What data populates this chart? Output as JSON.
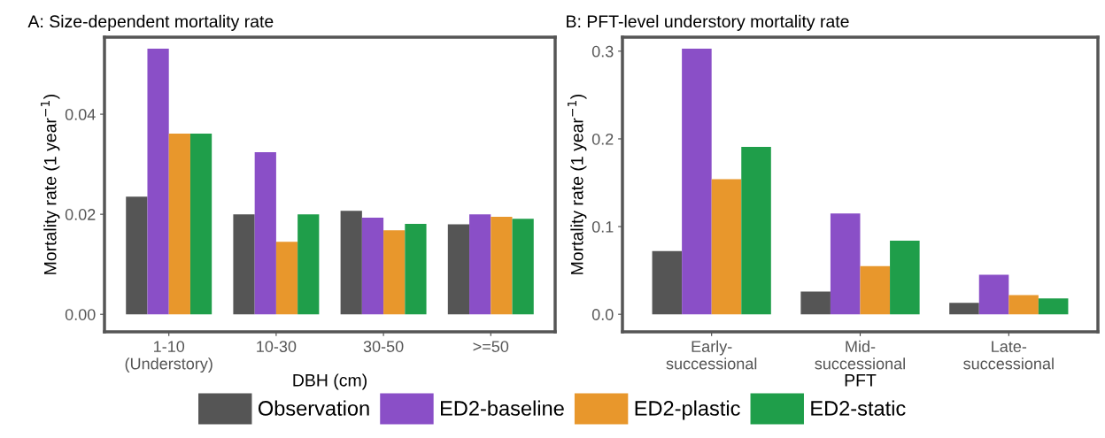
{
  "chart_data": [
    {
      "type": "bar",
      "title": "A: Size-dependent mortality rate",
      "xlabel": "DBH (cm)",
      "ylabel": "Mortality rate (1 year$^{−1}$)",
      "categories": [
        "1-10\n(Understory)",
        "10-30",
        "30-50",
        ">=50"
      ],
      "ylim": [
        -0.0035,
        0.0554
      ],
      "yticks": [
        {
          "value": 0,
          "label": "0.00"
        },
        {
          "value": 0.02,
          "label": "0.02"
        },
        {
          "value": 0.04,
          "label": "0.04"
        }
      ],
      "legend": "bottom",
      "series": [
        {
          "name": "Observation",
          "color": "#555555",
          "values": [
            0.0235,
            0.02,
            0.0207,
            0.018
          ]
        },
        {
          "name": "ED2-baseline",
          "color": "#8a4fc7",
          "values": [
            0.0531,
            0.0324,
            0.0193,
            0.02
          ]
        },
        {
          "name": "ED2-plastic",
          "color": "#e8972c",
          "values": [
            0.0361,
            0.0145,
            0.0168,
            0.0195
          ]
        },
        {
          "name": "ED2-static",
          "color": "#1f9e4a",
          "values": [
            0.0361,
            0.02,
            0.0181,
            0.0191
          ]
        }
      ]
    },
    {
      "type": "bar",
      "title": "B: PFT-level understory mortality rate",
      "xlabel": "PFT",
      "ylabel": "Mortality rate (1 year$^{−1}$)",
      "categories": [
        "Early-\nsuccessional",
        "Mid-\nsuccessional",
        "Late-\nsuccessional"
      ],
      "ylim": [
        -0.02,
        0.316
      ],
      "yticks": [
        {
          "value": 0,
          "label": "0.0"
        },
        {
          "value": 0.1,
          "label": "0.1"
        },
        {
          "value": 0.2,
          "label": "0.2"
        },
        {
          "value": 0.3,
          "label": "0.3"
        }
      ],
      "series": [
        {
          "color": "#555555",
          "values": [
            0.072,
            0.026,
            0.013
          ]
        },
        {
          "color": "#8a4fc7",
          "values": [
            0.303,
            0.115,
            0.045
          ]
        },
        {
          "color": "#e8972c",
          "values": [
            0.154,
            0.055,
            0.022
          ]
        },
        {
          "color": "#1f9e4a",
          "values": [
            0.191,
            0.084,
            0.018
          ]
        }
      ]
    }
  ]
}
